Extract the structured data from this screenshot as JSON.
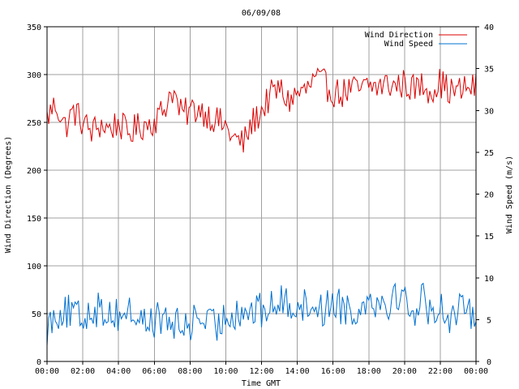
{
  "chart_data": {
    "type": "line",
    "title": "06/09/08",
    "xlabel": "Time GMT",
    "ylabel_left": "Wind Direction (Degrees)",
    "ylabel_right": "Wind Speed (m/s)",
    "x_tick_labels": [
      "00:00",
      "02:00",
      "04:00",
      "06:00",
      "08:00",
      "10:00",
      "12:00",
      "14:00",
      "16:00",
      "18:00",
      "20:00",
      "22:00",
      "00:00"
    ],
    "xlim_hours": [
      0,
      24
    ],
    "y_left": {
      "lim": [
        0,
        350
      ],
      "ticks": [
        0,
        50,
        100,
        150,
        200,
        250,
        300,
        350
      ]
    },
    "y_right": {
      "lim": [
        0,
        40
      ],
      "ticks": [
        0,
        5,
        10,
        15,
        20,
        25,
        30,
        35,
        40
      ]
    },
    "grid": true,
    "legend_position": "top-right",
    "series": [
      {
        "name": "Wind Direction",
        "axis": "left",
        "color": "#dd0000",
        "x_hours": [
          0,
          0.5,
          1,
          1.5,
          2,
          2.5,
          3,
          3.5,
          4,
          4.5,
          5,
          5.5,
          6,
          6.5,
          7,
          7.5,
          8,
          8.5,
          9,
          9.5,
          10,
          10.5,
          11,
          11.5,
          12,
          12.5,
          13,
          13.5,
          14,
          14.5,
          15,
          15.5,
          16,
          16.5,
          17,
          17.5,
          18,
          18.5,
          19,
          19.5,
          20,
          20.5,
          21,
          21.5,
          22,
          22.5,
          23,
          23.5,
          24
        ],
        "values": [
          255,
          270,
          245,
          262,
          250,
          240,
          248,
          243,
          250,
          238,
          244,
          248,
          252,
          262,
          285,
          258,
          262,
          265,
          258,
          252,
          245,
          232,
          228,
          250,
          262,
          278,
          285,
          272,
          280,
          283,
          295,
          290,
          282,
          280,
          285,
          283,
          288,
          287,
          290,
          288,
          291,
          285,
          289,
          284,
          292,
          283,
          282,
          286,
          287
        ]
      },
      {
        "name": "Wind Speed",
        "axis": "right",
        "color": "#0070d0",
        "x_hours": [
          0,
          0.5,
          1,
          1.5,
          2,
          2.5,
          3,
          3.5,
          4,
          4.5,
          5,
          5.5,
          6,
          6.5,
          7,
          7.5,
          8,
          8.5,
          9,
          9.5,
          10,
          10.5,
          11,
          11.5,
          12,
          12.5,
          13,
          13.5,
          14,
          14.5,
          15,
          15.5,
          16,
          16.5,
          17,
          17.5,
          18,
          18.5,
          19,
          19.5,
          20,
          20.5,
          21,
          21.5,
          22,
          22.5,
          23,
          23.5,
          24
        ],
        "values": [
          4,
          6,
          6,
          5.5,
          5,
          6.5,
          6,
          6,
          5.5,
          6,
          5.5,
          4.5,
          5,
          5,
          4.5,
          4,
          4.5,
          5.5,
          4.5,
          4,
          5.5,
          6,
          6,
          6,
          6,
          6.5,
          7,
          7,
          7,
          6.5,
          7,
          6,
          7.5,
          6.5,
          6.5,
          5.5,
          8.5,
          7,
          7,
          8,
          7.5,
          6,
          7.5,
          6,
          6.5,
          5.5,
          6,
          5.5,
          6.5
        ]
      }
    ]
  }
}
